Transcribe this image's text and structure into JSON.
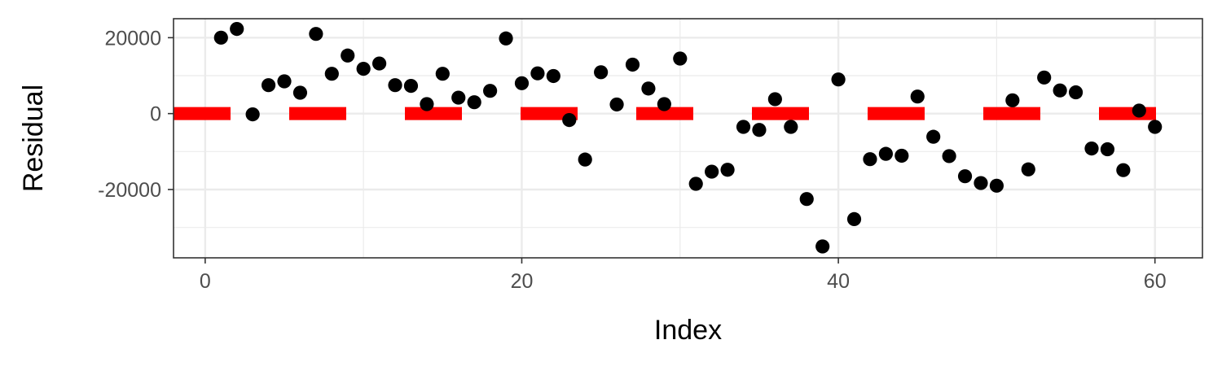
{
  "chart_data": {
    "type": "scatter",
    "title": "",
    "xlabel": "Index",
    "ylabel": "Residual",
    "xlim": [
      -2,
      63
    ],
    "ylim": [
      -38000,
      25000
    ],
    "x_ticks": [
      0,
      20,
      40,
      60
    ],
    "y_ticks": [
      20000,
      0,
      -20000
    ],
    "grid": true,
    "legend": "none",
    "colors": {
      "points": "#000000",
      "reference": "#ff0000"
    },
    "series": [
      {
        "type": "scatter",
        "x": [
          1,
          2,
          3,
          4,
          5,
          6,
          7,
          8,
          9,
          10,
          11,
          12,
          13,
          14,
          15,
          16,
          17,
          18,
          19,
          20,
          21,
          22,
          23,
          24,
          25,
          26,
          27,
          28,
          29,
          30,
          31,
          32,
          33,
          34,
          35,
          36,
          37,
          38,
          39,
          40,
          41,
          42,
          43,
          44,
          45,
          46,
          47,
          48,
          49,
          50,
          51,
          52,
          53,
          54,
          55,
          56,
          57,
          58,
          59,
          60
        ],
        "values": [
          20000,
          22300,
          -200,
          7500,
          8500,
          5500,
          21000,
          10500,
          15300,
          11800,
          13200,
          7500,
          7300,
          2500,
          10500,
          4200,
          3000,
          6000,
          19800,
          8000,
          10600,
          9900,
          -1700,
          -12100,
          10900,
          2400,
          12900,
          6600,
          2500,
          14500,
          -18500,
          -15300,
          -14800,
          -3500,
          -4300,
          3800,
          -3500,
          -22500,
          -35000,
          9000,
          -27800,
          -12000,
          -10600,
          -11100,
          4500,
          -6100,
          -11200,
          -16500,
          -18300,
          -19000,
          3500,
          -14700,
          9500,
          6100,
          5600,
          -9200,
          -9400,
          -14900,
          800,
          -3500
        ]
      },
      {
        "type": "dashed_line",
        "y": 0
      }
    ]
  }
}
